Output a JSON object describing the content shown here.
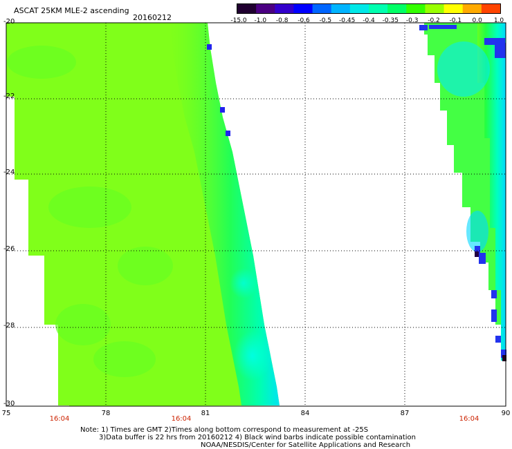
{
  "header": {
    "title": "ASCAT 25KM MLE-2 ascending",
    "date": "20160212"
  },
  "colorbar": {
    "labels": [
      "-15.0",
      "-1.0",
      "-0.8",
      "-0.6",
      "-0.5",
      "-0.45",
      "-0.4",
      "-0.35",
      "-0.3",
      "-0.2",
      "-0.1",
      "0.0",
      "1.0"
    ],
    "colors": [
      "#200030",
      "#4b0082",
      "#3300cc",
      "#0000ff",
      "#0066ff",
      "#00b4ff",
      "#00e8e8",
      "#00ffb0",
      "#00ff66",
      "#33ff00",
      "#99ff00",
      "#ffff00",
      "#ffaa00",
      "#ff4400"
    ]
  },
  "map": {
    "lat_range": [
      -30,
      -20
    ],
    "lon_range": [
      75,
      90
    ],
    "y_ticks": [
      "-20",
      "-22",
      "-24",
      "-26",
      "-28",
      "-30"
    ],
    "x_ticks": [
      "75",
      "78",
      "81",
      "84",
      "87",
      "90"
    ],
    "pass_times": [
      "16:04",
      "16:04",
      "16:04"
    ]
  },
  "notes": {
    "line1": "Note: 1) Times are GMT 2)Times along bottom correspond to measurement at -25S",
    "line2": "3)Data buffer is 22 hrs from 20160212 4) Black wind barbs indicate possible contamination",
    "line3": "NOAA/NESDIS/Center for Satellite Applications and Research"
  }
}
